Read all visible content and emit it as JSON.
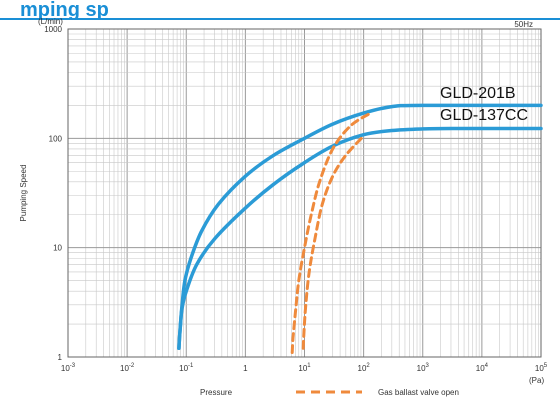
{
  "heading_fragment": "mping sp",
  "chart_data": {
    "type": "line",
    "title": "",
    "xlabel": "Pressure",
    "ylabel": "Pumping Speed",
    "y_unit": "(L/min)",
    "x_unit": "(Pa)",
    "frequency_note": "50Hz",
    "x_scale": "log",
    "y_scale": "log",
    "xlim": [
      0.001,
      100000
    ],
    "ylim": [
      1,
      1000
    ],
    "x_ticks": [
      {
        "v": 0.001,
        "base": "10",
        "exp": "-3"
      },
      {
        "v": 0.01,
        "base": "10",
        "exp": "-2"
      },
      {
        "v": 0.1,
        "base": "10",
        "exp": "-1"
      },
      {
        "v": 1,
        "base": "1",
        "exp": ""
      },
      {
        "v": 10,
        "base": "10",
        "exp": "1"
      },
      {
        "v": 100,
        "base": "10",
        "exp": "2"
      },
      {
        "v": 1000,
        "base": "10",
        "exp": "3"
      },
      {
        "v": 10000,
        "base": "10",
        "exp": "4"
      },
      {
        "v": 100000,
        "base": "10",
        "exp": "5"
      }
    ],
    "y_ticks": [
      {
        "v": 1,
        "label": "1"
      },
      {
        "v": 10,
        "label": "10"
      },
      {
        "v": 100,
        "label": "100"
      },
      {
        "v": 1000,
        "label": "1000"
      }
    ],
    "grid": true,
    "legend_text": "Gas ballast valve open",
    "colors": {
      "series": "#2b9bd6",
      "ballast": "#ef8a3c",
      "grid": "#c8c8c8"
    },
    "series": [
      {
        "name": "GLD-201B",
        "style": "solid",
        "color": "#2b9bd6",
        "x": [
          0.075,
          0.077,
          0.08,
          0.085,
          0.095,
          0.12,
          0.18,
          0.35,
          1,
          3,
          10,
          30,
          100,
          300,
          1000,
          100000
        ],
        "y": [
          1.2,
          1.5,
          2,
          3,
          5,
          8,
          14,
          25,
          45,
          70,
          100,
          135,
          170,
          195,
          200,
          200
        ]
      },
      {
        "name": "GLD-137CC",
        "style": "solid",
        "color": "#2b9bd6",
        "x": [
          0.075,
          0.077,
          0.08,
          0.085,
          0.1,
          0.15,
          0.3,
          1,
          3,
          10,
          30,
          100,
          300,
          1000,
          3000,
          100000
        ],
        "y": [
          1.2,
          1.5,
          2,
          2.8,
          4,
          7,
          12,
          23,
          38,
          60,
          85,
          108,
          118,
          122,
          123,
          123
        ]
      },
      {
        "name": "",
        "style": "dashed",
        "color": "#ef8a3c",
        "x": [
          6.2,
          6.4,
          7,
          8,
          10,
          13,
          18,
          30,
          60,
          130
        ],
        "y": [
          1.1,
          1.5,
          2.5,
          5,
          10,
          20,
          40,
          80,
          130,
          170
        ]
      },
      {
        "name": "",
        "style": "dashed",
        "color": "#ef8a3c",
        "x": [
          9.5,
          9.8,
          10.5,
          12,
          15,
          20,
          30,
          50,
          100
        ],
        "y": [
          1.2,
          1.7,
          3,
          6,
          12,
          25,
          45,
          70,
          105
        ]
      }
    ]
  }
}
